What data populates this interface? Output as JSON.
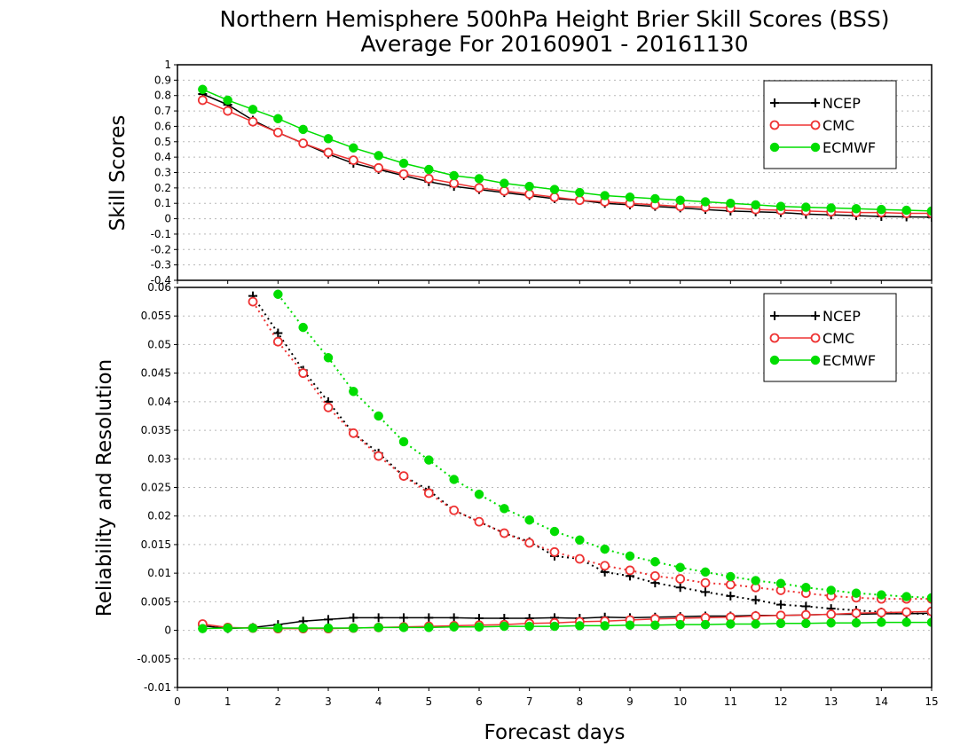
{
  "title_line1": "Northern Hemisphere 500hPa Height Brier Skill Scores (BSS)",
  "title_line2": "Average For 20160901 - 20161130",
  "xlabel": "Forecast days",
  "colors": {
    "NCEP": "#000000",
    "CMC": "#ee3333",
    "ECMWF": "#00dd00"
  },
  "chart_data": [
    {
      "type": "line",
      "ylabel": "Skill Scores",
      "xlim": [
        0,
        15
      ],
      "ylim": [
        -0.4,
        1
      ],
      "grid": true,
      "legend_position": "top-right",
      "x_ticks": [
        0,
        1,
        2,
        3,
        4,
        5,
        6,
        7,
        8,
        9,
        10,
        11,
        12,
        13,
        14,
        15
      ],
      "y_ticks": [
        "-0.4",
        "-0.3",
        "-0.2",
        "-0.1",
        "0",
        "0.1",
        "0.2",
        "0.3",
        "0.4",
        "0.5",
        "0.6",
        "0.7",
        "0.8",
        "0.9",
        "1"
      ],
      "x": [
        0.5,
        1,
        1.5,
        2,
        2.5,
        3,
        3.5,
        4,
        4.5,
        5,
        5.5,
        6,
        6.5,
        7,
        7.5,
        8,
        8.5,
        9,
        9.5,
        10,
        10.5,
        11,
        11.5,
        12,
        12.5,
        13,
        13.5,
        14,
        14.5,
        15
      ],
      "series": [
        {
          "name": "NCEP",
          "marker": "plus",
          "line": "solid",
          "values": [
            0.81,
            0.74,
            0.64,
            0.56,
            0.49,
            0.42,
            0.36,
            0.32,
            0.28,
            0.24,
            0.21,
            0.19,
            0.17,
            0.15,
            0.13,
            0.12,
            0.1,
            0.09,
            0.08,
            0.07,
            0.06,
            0.05,
            0.045,
            0.04,
            0.03,
            0.025,
            0.02,
            0.015,
            0.012,
            0.01
          ]
        },
        {
          "name": "CMC",
          "marker": "open-circle",
          "line": "solid",
          "values": [
            0.77,
            0.7,
            0.63,
            0.56,
            0.49,
            0.43,
            0.38,
            0.33,
            0.29,
            0.26,
            0.23,
            0.2,
            0.18,
            0.16,
            0.14,
            0.12,
            0.11,
            0.1,
            0.09,
            0.08,
            0.075,
            0.07,
            0.06,
            0.055,
            0.05,
            0.045,
            0.04,
            0.04,
            0.035,
            0.035
          ]
        },
        {
          "name": "ECMWF",
          "marker": "filled-circle",
          "line": "solid",
          "values": [
            0.84,
            0.77,
            0.71,
            0.65,
            0.58,
            0.52,
            0.46,
            0.41,
            0.36,
            0.32,
            0.28,
            0.26,
            0.23,
            0.21,
            0.19,
            0.17,
            0.15,
            0.14,
            0.13,
            0.12,
            0.11,
            0.1,
            0.09,
            0.08,
            0.075,
            0.07,
            0.065,
            0.06,
            0.055,
            0.05
          ]
        }
      ]
    },
    {
      "type": "line",
      "ylabel": "Reliability and Resolution",
      "xlabel": "Forecast days",
      "xlim": [
        0,
        15
      ],
      "ylim": [
        -0.01,
        0.06
      ],
      "grid": true,
      "legend_position": "top-right",
      "x_ticks": [
        0,
        1,
        2,
        3,
        4,
        5,
        6,
        7,
        8,
        9,
        10,
        11,
        12,
        13,
        14,
        15
      ],
      "y_ticks": [
        "-0.01",
        "-0.005",
        "0",
        "0.005",
        "0.01",
        "0.015",
        "0.02",
        "0.025",
        "0.03",
        "0.035",
        "0.04",
        "0.045",
        "0.05",
        "0.055",
        "0.06"
      ],
      "series": [
        {
          "name": "NCEP",
          "marker": "plus",
          "line": "dotted",
          "x_start": 1.5,
          "x": [
            1.5,
            2,
            2.5,
            3,
            3.5,
            4,
            4.5,
            5,
            5.5,
            6,
            6.5,
            7,
            7.5,
            8,
            8.5,
            9,
            9.5,
            10,
            10.5,
            11,
            11.5,
            12,
            12.5,
            13,
            13.5,
            14,
            14.5,
            15
          ],
          "values": [
            0.0585,
            0.052,
            0.0455,
            0.04,
            0.0345,
            0.031,
            0.027,
            0.0245,
            0.021,
            0.019,
            0.017,
            0.0155,
            0.013,
            0.0125,
            0.0102,
            0.0095,
            0.0083,
            0.0075,
            0.0067,
            0.006,
            0.0053,
            0.0045,
            0.0042,
            0.0038,
            0.0035,
            0.0032,
            0.003,
            0.0028
          ]
        },
        {
          "name": "CMC",
          "marker": "open-circle",
          "line": "dotted",
          "x_start": 1.5,
          "x": [
            1.5,
            2,
            2.5,
            3,
            3.5,
            4,
            4.5,
            5,
            5.5,
            6,
            6.5,
            7,
            7.5,
            8,
            8.5,
            9,
            9.5,
            10,
            10.5,
            11,
            11.5,
            12,
            12.5,
            13,
            13.5,
            14,
            14.5,
            15
          ],
          "values": [
            0.0575,
            0.0505,
            0.045,
            0.039,
            0.0345,
            0.0305,
            0.027,
            0.024,
            0.021,
            0.019,
            0.017,
            0.0153,
            0.0137,
            0.0125,
            0.0113,
            0.0105,
            0.0095,
            0.009,
            0.0083,
            0.008,
            0.0075,
            0.007,
            0.0065,
            0.006,
            0.0057,
            0.0055,
            0.0055,
            0.0055
          ]
        },
        {
          "name": "ECMWF",
          "marker": "filled-circle",
          "line": "dotted",
          "x_start": 2,
          "x": [
            2,
            2.5,
            3,
            3.5,
            4,
            4.5,
            5,
            5.5,
            6,
            6.5,
            7,
            7.5,
            8,
            8.5,
            9,
            9.5,
            10,
            10.5,
            11,
            11.5,
            12,
            12.5,
            13,
            13.5,
            14,
            14.5,
            15
          ],
          "values": [
            0.0588,
            0.053,
            0.0477,
            0.0418,
            0.0375,
            0.033,
            0.0298,
            0.0264,
            0.0238,
            0.0213,
            0.0193,
            0.0173,
            0.0158,
            0.0142,
            0.013,
            0.012,
            0.011,
            0.0102,
            0.0094,
            0.0087,
            0.0082,
            0.0075,
            0.007,
            0.0065,
            0.0062,
            0.0059,
            0.0057
          ]
        },
        {
          "name": "NCEP",
          "marker": "plus",
          "line": "solid",
          "x": [
            0.5,
            1,
            1.5,
            2,
            2.5,
            3,
            3.5,
            4,
            4.5,
            5,
            5.5,
            6,
            6.5,
            7,
            7.5,
            8,
            8.5,
            9,
            9.5,
            10,
            10.5,
            11,
            11.5,
            12,
            12.5,
            13,
            13.5,
            14,
            14.5,
            15
          ],
          "values": [
            0.0008,
            0.0003,
            0.0005,
            0.001,
            0.0016,
            0.0019,
            0.0022,
            0.0022,
            0.0022,
            0.0022,
            0.0022,
            0.0021,
            0.0021,
            0.0021,
            0.0022,
            0.0021,
            0.0023,
            0.0022,
            0.0023,
            0.0024,
            0.0025,
            0.0025,
            0.0026,
            0.0026,
            0.0027,
            0.0028,
            0.0028,
            0.0029,
            0.0029,
            0.003
          ]
        },
        {
          "name": "CMC",
          "marker": "open-circle",
          "line": "solid",
          "x": [
            0.5,
            1,
            1.5,
            2,
            2.5,
            3,
            3.5,
            4,
            4.5,
            5,
            5.5,
            6,
            6.5,
            7,
            7.5,
            8,
            8.5,
            9,
            9.5,
            10,
            10.5,
            11,
            11.5,
            12,
            12.5,
            13,
            13.5,
            14,
            14.5,
            15
          ],
          "values": [
            0.0011,
            0.0005,
            0.0004,
            0.0003,
            0.0003,
            0.0003,
            0.0004,
            0.0005,
            0.0006,
            0.0007,
            0.0008,
            0.0009,
            0.001,
            0.0012,
            0.0013,
            0.0015,
            0.0016,
            0.0018,
            0.002,
            0.0021,
            0.0022,
            0.0023,
            0.0025,
            0.0026,
            0.0027,
            0.0028,
            0.003,
            0.0031,
            0.0032,
            0.0033
          ]
        },
        {
          "name": "ECMWF",
          "marker": "filled-circle",
          "line": "solid",
          "x": [
            0.5,
            1,
            1.5,
            2,
            2.5,
            3,
            3.5,
            4,
            4.5,
            5,
            5.5,
            6,
            6.5,
            7,
            7.5,
            8,
            8.5,
            9,
            9.5,
            10,
            10.5,
            11,
            11.5,
            12,
            12.5,
            13,
            13.5,
            14,
            14.5,
            15
          ],
          "values": [
            0.0003,
            0.0004,
            0.0004,
            0.0004,
            0.0004,
            0.0004,
            0.0004,
            0.0005,
            0.0005,
            0.0005,
            0.0006,
            0.0006,
            0.0007,
            0.0007,
            0.0007,
            0.0008,
            0.0008,
            0.0009,
            0.0009,
            0.001,
            0.001,
            0.0011,
            0.0011,
            0.0012,
            0.0012,
            0.0013,
            0.0013,
            0.0014,
            0.0014,
            0.0014
          ]
        }
      ]
    }
  ],
  "legend": [
    {
      "name": "NCEP",
      "marker": "plus"
    },
    {
      "name": "CMC",
      "marker": "open-circle"
    },
    {
      "name": "ECMWF",
      "marker": "filled-circle"
    }
  ]
}
